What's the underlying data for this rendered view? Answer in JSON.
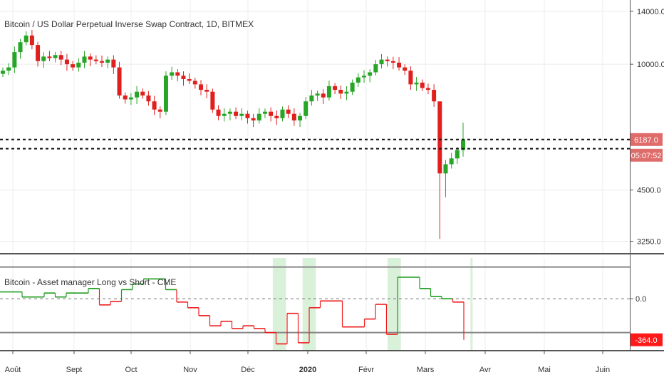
{
  "colors": {
    "up": "#26a526",
    "down": "#e0201f",
    "price_tag": "#e06b6b",
    "indicator_up": "#1e9c1e",
    "indicator_down": "#ee1c1c",
    "shade": "#d9f0d9",
    "grid": "#ececec",
    "axis_line": "#555555"
  },
  "chart_data": [
    {
      "type": "line",
      "title": "Bitcoin / US Dollar Perpetual Inverse Swap Contract, 1D, BITMEX",
      "x_labels": [
        "Août",
        "Sept",
        "Oct",
        "Nov",
        "Déc",
        "2020",
        "Févr",
        "Mars",
        "Avr",
        "Mai",
        "Juin"
      ],
      "y_ticks": [
        "14000.0",
        "10000.0",
        "4500.0",
        "3250.0"
      ],
      "y_scale": "log",
      "ylim": [
        3100,
        14500
      ],
      "price_tag": "6187.0",
      "countdown": "05:07:52",
      "dashed_levels": [
        6200,
        5850
      ],
      "close_series": [
        9600,
        9800,
        10800,
        11500,
        12000,
        11300,
        10200,
        10500,
        10400,
        10600,
        10300,
        10000,
        9800,
        10100,
        10500,
        10300,
        10200,
        10100,
        10300,
        9800,
        8200,
        8000,
        8100,
        8400,
        8200,
        7900,
        7500,
        7400,
        9300,
        9500,
        9300,
        9100,
        9000,
        8800,
        8500,
        8400,
        7500,
        7200,
        7300,
        7400,
        7200,
        7300,
        7100,
        7000,
        7300,
        7400,
        7200,
        7100,
        7500,
        7300,
        7000,
        7200,
        7900,
        8200,
        8300,
        8100,
        8700,
        8500,
        8300,
        8400,
        8900,
        9200,
        9300,
        9500,
        10000,
        10300,
        10200,
        10100,
        9800,
        9600,
        8800,
        8900,
        8600,
        8500,
        7900,
        5000,
        5300,
        5500,
        5800,
        6187
      ]
    },
    {
      "type": "line",
      "title": "Bitcoin - Asset manager Long vs Short - CME",
      "y_ticks": [
        "0.0"
      ],
      "value_tag": "-364.0",
      "current_value": -364,
      "ylim": [
        -460,
        360
      ],
      "upper_level": 280,
      "lower_level": -300,
      "zero_level": 0,
      "steps": [
        {
          "week": 0,
          "value": 60
        },
        {
          "week": 1,
          "value": 60
        },
        {
          "week": 2,
          "value": 15
        },
        {
          "week": 3,
          "value": 15
        },
        {
          "week": 4,
          "value": 50
        },
        {
          "week": 5,
          "value": 15
        },
        {
          "week": 6,
          "value": 50
        },
        {
          "week": 7,
          "value": 50
        },
        {
          "week": 8,
          "value": 90
        },
        {
          "week": 9,
          "value": -55
        },
        {
          "week": 10,
          "value": -25
        },
        {
          "week": 11,
          "value": 80
        },
        {
          "week": 12,
          "value": 130
        },
        {
          "week": 13,
          "value": 175
        },
        {
          "week": 14,
          "value": 175
        },
        {
          "week": 15,
          "value": 80
        },
        {
          "week": 16,
          "value": -30
        },
        {
          "week": 17,
          "value": -80
        },
        {
          "week": 18,
          "value": -150
        },
        {
          "week": 19,
          "value": -240
        },
        {
          "week": 20,
          "value": -200
        },
        {
          "week": 21,
          "value": -265
        },
        {
          "week": 22,
          "value": -240
        },
        {
          "week": 23,
          "value": -265
        },
        {
          "week": 24,
          "value": -300
        },
        {
          "week": 25,
          "value": -400
        },
        {
          "week": 26,
          "value": -130
        },
        {
          "week": 27,
          "value": -390
        },
        {
          "week": 28,
          "value": -80
        },
        {
          "week": 29,
          "value": -20
        },
        {
          "week": 30,
          "value": -20
        },
        {
          "week": 31,
          "value": -250
        },
        {
          "week": 32,
          "value": -250
        },
        {
          "week": 33,
          "value": -180
        },
        {
          "week": 34,
          "value": -50
        },
        {
          "week": 35,
          "value": -315
        },
        {
          "week": 36,
          "value": 190
        },
        {
          "week": 37,
          "value": 190
        },
        {
          "week": 38,
          "value": 90
        },
        {
          "week": 39,
          "value": 20
        },
        {
          "week": 40,
          "value": 0
        },
        {
          "week": 41,
          "value": -30
        },
        {
          "week": 42,
          "value": -364
        }
      ],
      "shaded_weeks": [
        [
          24.7,
          25.9
        ],
        [
          27.4,
          28.6
        ],
        [
          35.1,
          36.3
        ],
        [
          42.6,
          42.8
        ]
      ]
    }
  ]
}
